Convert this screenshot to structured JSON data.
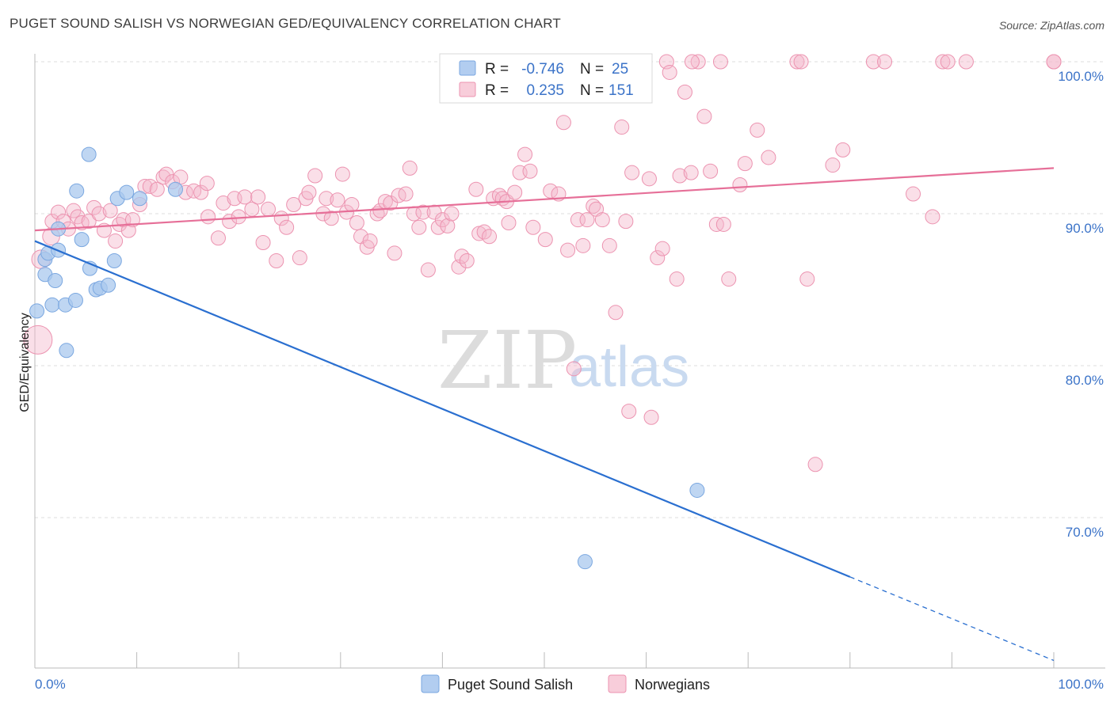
{
  "title": "PUGET SOUND SALISH VS NORWEGIAN GED/EQUIVALENCY CORRELATION CHART",
  "source": "Source: ZipAtlas.com",
  "watermark": {
    "zip": "ZIP",
    "atlas": "atlas"
  },
  "colors": {
    "blue_fill": "#aac8ee",
    "blue_stroke": "#7aa7e0",
    "blue_line": "#2a6fd0",
    "pink_fill": "#f5b8cb",
    "pink_stroke": "#ec93b0",
    "pink_line": "#e66f98",
    "grid": "#dddddd",
    "tick_text": "#3b73c8"
  },
  "legend": {
    "r_label": "R =",
    "n_label": "N =",
    "rows": [
      {
        "series": "blue",
        "r": "-0.746",
        "n": "25"
      },
      {
        "series": "pink",
        "r": "0.235",
        "n": "151"
      }
    ]
  },
  "chart_data": {
    "type": "scatter",
    "xlabel": "",
    "ylabel": "GED/Equivalency",
    "xlim": [
      0,
      100
    ],
    "ylim": [
      60,
      100
    ],
    "x_tick_labels": [
      "0.0%",
      "100.0%"
    ],
    "y_tick_labels": [
      "100.0%",
      "90.0%",
      "80.0%",
      "70.0%"
    ],
    "y_ticks": [
      100,
      90,
      80,
      70
    ],
    "grid": true,
    "legend_position": "top-center",
    "series": [
      {
        "name": "Puget Sound Salish",
        "color": "blue",
        "trend": {
          "x0": 0,
          "y0": 88.2,
          "x1": 80,
          "y1": 66.1,
          "dash_to_x": 100,
          "dash_to_y": 60.6
        },
        "points": [
          [
            0.2,
            83.6,
            1
          ],
          [
            1.0,
            87.0,
            1
          ],
          [
            1.3,
            87.4,
            1
          ],
          [
            1.0,
            86.0,
            1
          ],
          [
            2.0,
            85.6,
            1
          ],
          [
            1.7,
            84.0,
            1
          ],
          [
            2.3,
            89.0,
            1
          ],
          [
            2.3,
            87.6,
            1
          ],
          [
            3.0,
            84.0,
            1
          ],
          [
            3.1,
            81.0,
            1
          ],
          [
            4.0,
            84.3,
            1
          ],
          [
            4.1,
            91.5,
            1
          ],
          [
            4.6,
            88.3,
            1
          ],
          [
            5.3,
            93.9,
            1
          ],
          [
            5.4,
            86.4,
            1
          ],
          [
            6.0,
            85.0,
            1
          ],
          [
            6.4,
            85.1,
            1
          ],
          [
            7.2,
            85.3,
            1
          ],
          [
            7.8,
            86.9,
            1
          ],
          [
            8.1,
            91.0,
            1
          ],
          [
            9.0,
            91.4,
            1
          ],
          [
            10.3,
            91.0,
            1
          ],
          [
            13.8,
            91.6,
            1
          ],
          [
            54.0,
            67.1,
            1
          ],
          [
            65.0,
            71.8,
            1
          ]
        ]
      },
      {
        "name": "Norwegians",
        "color": "pink",
        "trend": {
          "x0": 0,
          "y0": 88.9,
          "x1": 100,
          "y1": 93.0
        },
        "points": [
          [
            0.3,
            81.7,
            2.0
          ],
          [
            0.6,
            87.0,
            1.3
          ],
          [
            1.6,
            88.5,
            1.2
          ],
          [
            1.7,
            89.5,
            1
          ],
          [
            2.3,
            90.1,
            1
          ],
          [
            2.8,
            89.5,
            1
          ],
          [
            3.3,
            89.0,
            1
          ],
          [
            3.8,
            90.2,
            1
          ],
          [
            4.2,
            89.8,
            1
          ],
          [
            4.6,
            89.4,
            1
          ],
          [
            5.3,
            89.5,
            1
          ],
          [
            5.8,
            90.4,
            1
          ],
          [
            6.3,
            90.0,
            1
          ],
          [
            6.8,
            88.9,
            1
          ],
          [
            7.4,
            90.2,
            1
          ],
          [
            7.9,
            88.2,
            1
          ],
          [
            8.3,
            89.3,
            1
          ],
          [
            8.7,
            89.6,
            1
          ],
          [
            9.2,
            88.9,
            1
          ],
          [
            9.6,
            89.6,
            1
          ],
          [
            10.3,
            90.6,
            1
          ],
          [
            10.8,
            91.8,
            1
          ],
          [
            11.3,
            91.8,
            1
          ],
          [
            12.0,
            91.6,
            1
          ],
          [
            12.6,
            92.4,
            1
          ],
          [
            12.9,
            92.6,
            1
          ],
          [
            13.5,
            92.1,
            1
          ],
          [
            14.3,
            92.4,
            1
          ],
          [
            14.8,
            91.4,
            1
          ],
          [
            15.6,
            91.5,
            1
          ],
          [
            16.3,
            91.4,
            1
          ],
          [
            16.9,
            92.0,
            1
          ],
          [
            17.0,
            89.8,
            1
          ],
          [
            18.0,
            88.4,
            1
          ],
          [
            18.5,
            90.7,
            1
          ],
          [
            19.1,
            89.5,
            1
          ],
          [
            19.6,
            91.0,
            1
          ],
          [
            20.0,
            89.8,
            1
          ],
          [
            20.6,
            91.1,
            1
          ],
          [
            21.3,
            90.3,
            1
          ],
          [
            21.9,
            91.1,
            1
          ],
          [
            22.4,
            88.1,
            1
          ],
          [
            22.9,
            90.3,
            1
          ],
          [
            23.7,
            86.9,
            1
          ],
          [
            24.2,
            89.7,
            1
          ],
          [
            24.7,
            89.1,
            1
          ],
          [
            25.4,
            90.6,
            1
          ],
          [
            26.0,
            87.1,
            1
          ],
          [
            26.6,
            91.0,
            1
          ],
          [
            26.9,
            91.4,
            1
          ],
          [
            27.5,
            92.5,
            1
          ],
          [
            28.3,
            90.0,
            1
          ],
          [
            28.6,
            91.0,
            1
          ],
          [
            29.1,
            89.7,
            1
          ],
          [
            29.7,
            90.9,
            1
          ],
          [
            30.2,
            92.6,
            1
          ],
          [
            30.6,
            90.1,
            1
          ],
          [
            31.1,
            90.6,
            1
          ],
          [
            31.6,
            89.4,
            1
          ],
          [
            32.0,
            88.5,
            1
          ],
          [
            32.6,
            87.8,
            1
          ],
          [
            32.9,
            88.2,
            1
          ],
          [
            33.6,
            90.0,
            1
          ],
          [
            33.9,
            90.2,
            1
          ],
          [
            34.4,
            90.8,
            1
          ],
          [
            34.9,
            90.7,
            1
          ],
          [
            35.3,
            87.4,
            1
          ],
          [
            35.7,
            91.2,
            1
          ],
          [
            36.4,
            91.3,
            1
          ],
          [
            36.8,
            93.0,
            1
          ],
          [
            37.2,
            90.0,
            1
          ],
          [
            37.7,
            89.1,
            1
          ],
          [
            38.1,
            90.1,
            1
          ],
          [
            38.6,
            86.3,
            1
          ],
          [
            39.2,
            90.1,
            1
          ],
          [
            39.6,
            89.1,
            1
          ],
          [
            40.0,
            89.6,
            1
          ],
          [
            40.5,
            89.2,
            1
          ],
          [
            40.9,
            90.0,
            1
          ],
          [
            41.6,
            86.5,
            1
          ],
          [
            41.9,
            87.2,
            1
          ],
          [
            42.4,
            86.9,
            1
          ],
          [
            43.3,
            91.6,
            1
          ],
          [
            43.6,
            88.7,
            1
          ],
          [
            44.1,
            88.8,
            1
          ],
          [
            44.6,
            88.5,
            1
          ],
          [
            45.0,
            91.0,
            1
          ],
          [
            45.6,
            91.2,
            1
          ],
          [
            45.9,
            91.0,
            1
          ],
          [
            46.3,
            90.8,
            1
          ],
          [
            46.5,
            89.4,
            1
          ],
          [
            47.1,
            91.4,
            1
          ],
          [
            47.6,
            92.7,
            1
          ],
          [
            48.1,
            93.9,
            1
          ],
          [
            48.6,
            92.8,
            1
          ],
          [
            48.9,
            89.1,
            1
          ],
          [
            50.1,
            88.3,
            1
          ],
          [
            50.6,
            91.5,
            1
          ],
          [
            51.4,
            91.3,
            1
          ],
          [
            51.9,
            96.0,
            1
          ],
          [
            52.3,
            87.6,
            1
          ],
          [
            52.9,
            79.8,
            1
          ],
          [
            53.3,
            89.6,
            1
          ],
          [
            53.8,
            87.9,
            1
          ],
          [
            54.2,
            89.6,
            1
          ],
          [
            54.8,
            90.5,
            1
          ],
          [
            55.1,
            90.3,
            1
          ],
          [
            55.7,
            89.6,
            1
          ],
          [
            56.4,
            87.9,
            1
          ],
          [
            57.0,
            83.5,
            1
          ],
          [
            57.6,
            95.7,
            1
          ],
          [
            58.0,
            89.5,
            1
          ],
          [
            58.3,
            77.0,
            1
          ],
          [
            58.6,
            92.7,
            1
          ],
          [
            60.3,
            92.3,
            1
          ],
          [
            60.5,
            76.6,
            1
          ],
          [
            61.1,
            87.1,
            1
          ],
          [
            61.6,
            87.7,
            1
          ],
          [
            62.0,
            100.0,
            1
          ],
          [
            62.3,
            99.3,
            1
          ],
          [
            63.0,
            85.7,
            1
          ],
          [
            63.3,
            92.5,
            1
          ],
          [
            63.8,
            98.0,
            1
          ],
          [
            64.4,
            92.7,
            1
          ],
          [
            65.1,
            100.0,
            1
          ],
          [
            65.7,
            96.4,
            1
          ],
          [
            66.3,
            92.8,
            1
          ],
          [
            66.9,
            89.3,
            1
          ],
          [
            67.3,
            100.0,
            1
          ],
          [
            67.6,
            89.3,
            1
          ],
          [
            68.1,
            85.7,
            1
          ],
          [
            69.2,
            91.9,
            1
          ],
          [
            69.7,
            93.3,
            1
          ],
          [
            70.9,
            95.5,
            1
          ],
          [
            72.0,
            93.7,
            1
          ],
          [
            74.8,
            100.0,
            1
          ],
          [
            75.2,
            100.0,
            1
          ],
          [
            75.8,
            85.7,
            1
          ],
          [
            76.6,
            73.5,
            1
          ],
          [
            78.3,
            93.2,
            1
          ],
          [
            79.3,
            94.2,
            1
          ],
          [
            82.3,
            100.0,
            1
          ],
          [
            83.4,
            100.0,
            1
          ],
          [
            86.2,
            91.3,
            1
          ],
          [
            88.1,
            89.8,
            1
          ],
          [
            89.1,
            100.0,
            1
          ],
          [
            89.6,
            100.0,
            1
          ],
          [
            91.4,
            100.0,
            1
          ],
          [
            100.0,
            100.0,
            1
          ],
          [
            100.0,
            100.0,
            1
          ],
          [
            64.5,
            100.0,
            1
          ]
        ]
      }
    ]
  }
}
